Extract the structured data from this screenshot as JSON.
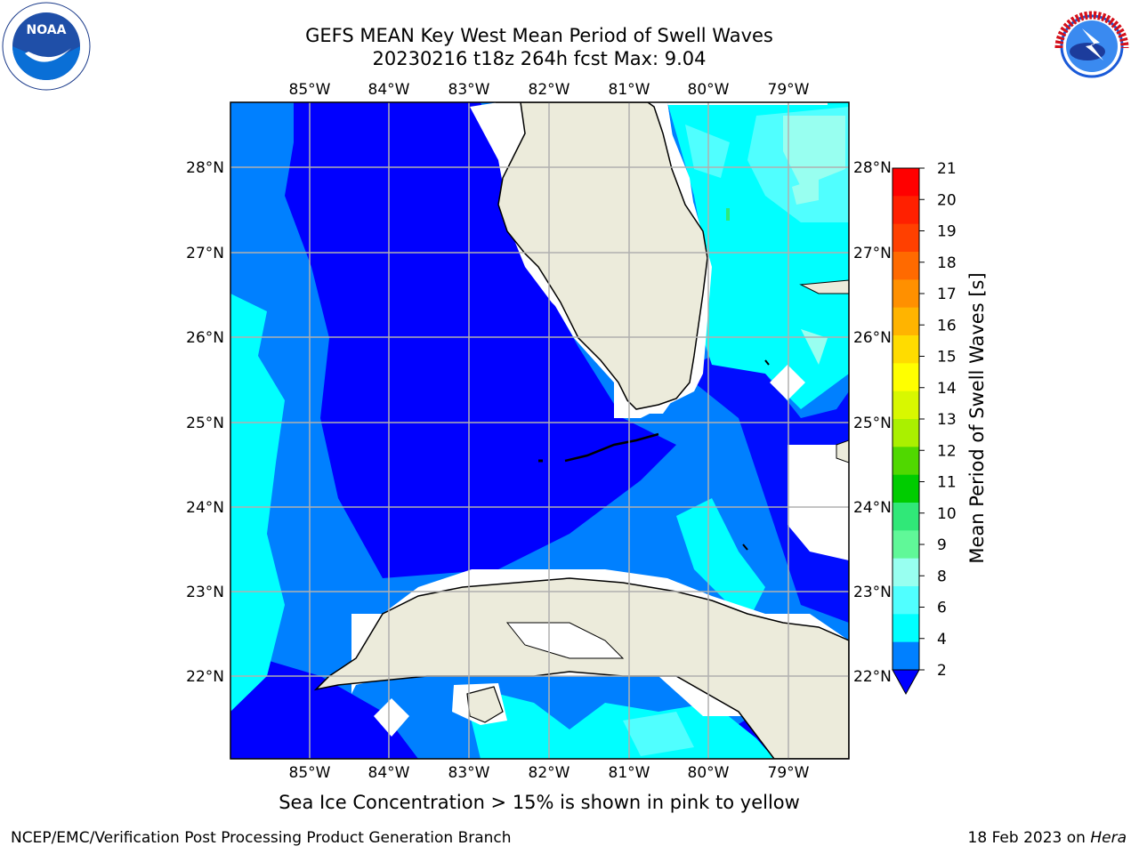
{
  "header": {
    "title_line1": "GEFS MEAN Key West Mean Period of Swell Waves",
    "title_line2": "20230216 t18z 264h fcst   Max: 9.04"
  },
  "logos": {
    "left": "noaa-logo",
    "right": "nws-logo",
    "left_text": "NOAA",
    "right_text": "NATIONAL WEATHER SERVICE"
  },
  "map": {
    "lon_labels": [
      "85°W",
      "84°W",
      "83°W",
      "82°W",
      "81°W",
      "80°W",
      "79°W"
    ],
    "lat_labels": [
      "28°N",
      "27°N",
      "26°N",
      "25°N",
      "24°N",
      "23°N",
      "22°N"
    ],
    "land_color": "#ecebdb",
    "grid_color": "#b0b0b0"
  },
  "colorbar": {
    "title": "Mean Period of Swell Waves [s]",
    "ticks": [
      "21",
      "20",
      "19",
      "18",
      "17",
      "16",
      "15",
      "14",
      "13",
      "12",
      "11",
      "10",
      "9",
      "8",
      "6",
      "4",
      "2"
    ],
    "colors": [
      "#ff0000",
      "#ff2000",
      "#ff4000",
      "#ff6a00",
      "#ff9000",
      "#ffb400",
      "#ffdc00",
      "#ffff00",
      "#d8f800",
      "#aaf000",
      "#50d800",
      "#00cc00",
      "#30e878",
      "#60f898",
      "#98fff0",
      "#50ffff",
      "#00ffff",
      "#0080ff"
    ],
    "extend_color": "#0000ff"
  },
  "notes": {
    "ice": "Sea Ice Concentration > 15% is shown in pink to yellow"
  },
  "footer": {
    "left": "NCEP/EMC/Verification Post Processing Product Generation Branch",
    "right_date": "18 Feb 2023 on ",
    "right_system": "Hera"
  }
}
